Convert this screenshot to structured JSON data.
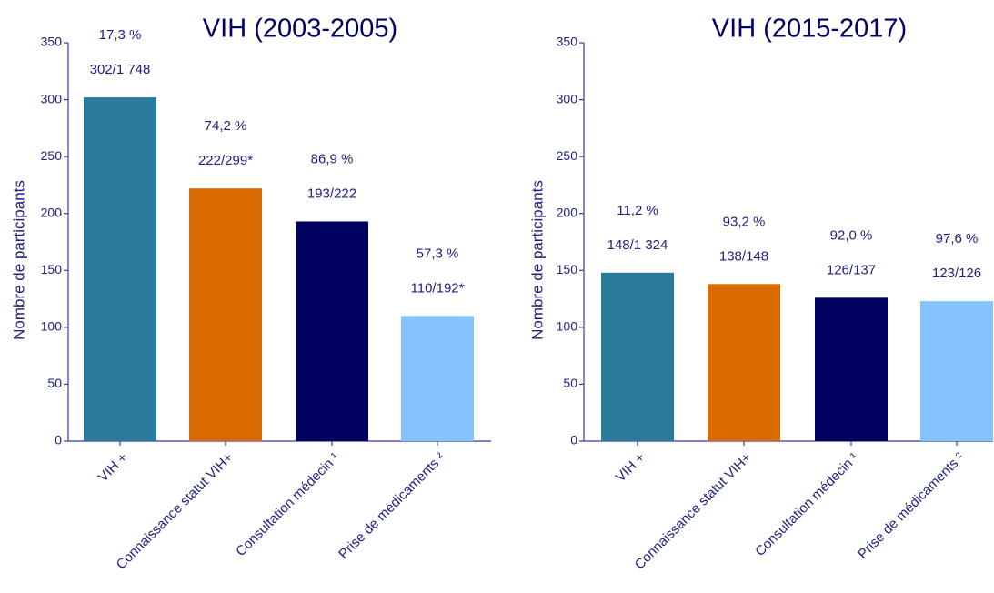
{
  "chart_data": [
    {
      "type": "bar",
      "title": "VIH (2003-2005)",
      "y_label": "Nombre de participants",
      "categories": [
        "VIH +",
        "Connaissance statut VIH+",
        "Consultation médecin ¹",
        "Prise de médicaments ²"
      ],
      "values": [
        302,
        222,
        193,
        110
      ],
      "value_labels": [
        "302/1 748",
        "222/299*",
        "193/222",
        "110/192*"
      ],
      "percent_labels": [
        "17,3 %",
        "74,2 %",
        "86,9 %",
        "57,3 %"
      ],
      "colors": [
        "#2a7a9b",
        "#d96b00",
        "#00005e",
        "#85c3ff"
      ],
      "ylim": [
        0,
        350
      ],
      "yticks": [
        0,
        50,
        100,
        150,
        200,
        250,
        300,
        350
      ]
    },
    {
      "type": "bar",
      "title": "VIH (2015-2017)",
      "y_label": "Nombre de participants",
      "categories": [
        "VIH +",
        "Connaissance statut VIH+",
        "Consultation médecin ¹",
        "Prise de médicaments ²"
      ],
      "values": [
        148,
        138,
        126,
        123
      ],
      "value_labels": [
        "148/1 324",
        "138/148",
        "126/137",
        "123/126"
      ],
      "percent_labels": [
        "11,2 %",
        "93,2 %",
        "92,0 %",
        "97,6 %"
      ],
      "colors": [
        "#2a7a9b",
        "#d96b00",
        "#00005e",
        "#85c3ff"
      ],
      "ylim": [
        0,
        350
      ],
      "yticks": [
        0,
        50,
        100,
        150,
        200,
        250,
        300,
        350
      ]
    }
  ]
}
